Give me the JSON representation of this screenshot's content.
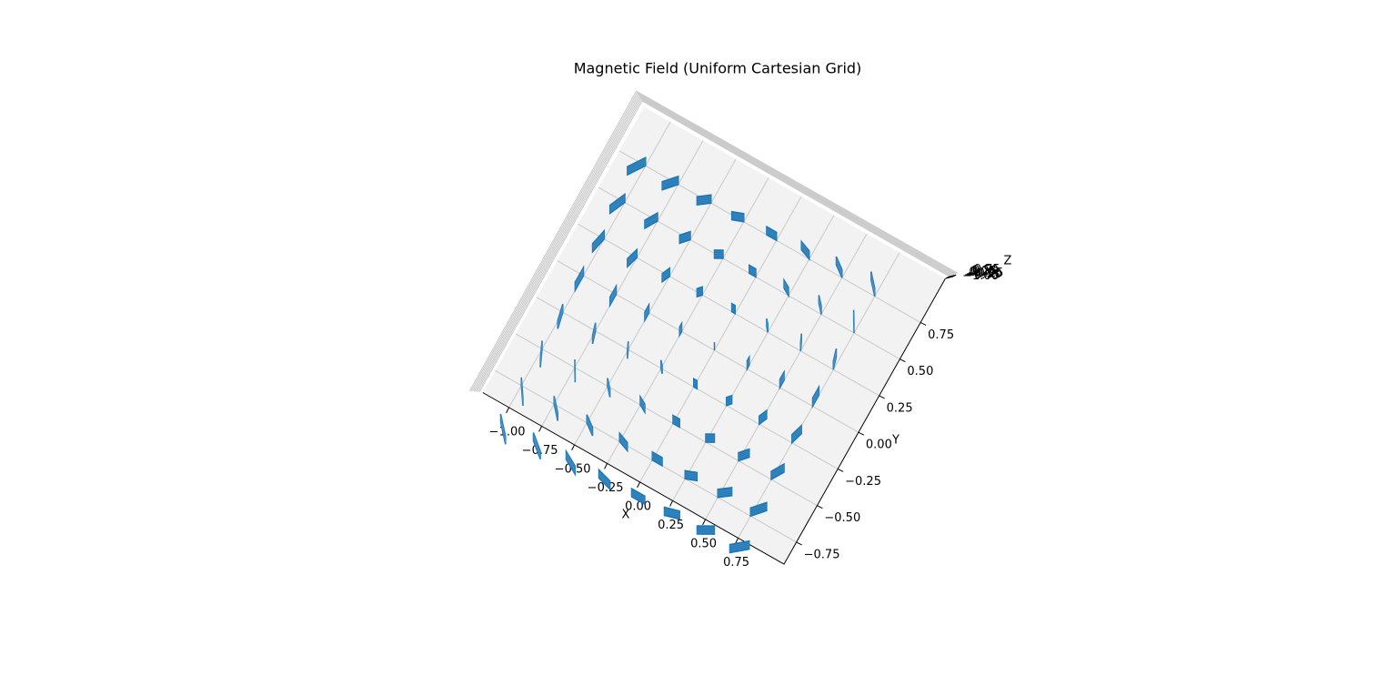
{
  "chart_data": {
    "type": "quiver3d",
    "title": "Magnetic Field (Uniform Cartesian Grid)",
    "xlabel": "X",
    "ylabel": "Y",
    "zlabel": "Z",
    "color": "#1f77b4",
    "grid": true,
    "xlim": [
      -1.2,
      1.1
    ],
    "ylim": [
      -0.9,
      1.05
    ],
    "zlim": [
      -1.1,
      0.85
    ],
    "xticks": [
      {
        "value": -1,
        "label": "−1.00"
      },
      {
        "value": -0.75,
        "label": "−0.75"
      },
      {
        "value": -0.5,
        "label": "−0.50"
      },
      {
        "value": -0.25,
        "label": "−0.25"
      },
      {
        "value": 0,
        "label": "0.00"
      },
      {
        "value": 0.25,
        "label": "0.25"
      },
      {
        "value": 0.5,
        "label": "0.50"
      },
      {
        "value": 0.75,
        "label": "0.75"
      }
    ],
    "yticks": [
      {
        "value": -0.75,
        "label": "−0.75"
      },
      {
        "value": -0.5,
        "label": "−0.50"
      },
      {
        "value": -0.25,
        "label": "−0.25"
      },
      {
        "value": 0,
        "label": "0.00"
      },
      {
        "value": 0.25,
        "label": "0.25"
      },
      {
        "value": 0.5,
        "label": "0.50"
      },
      {
        "value": 0.75,
        "label": "0.75"
      }
    ],
    "zticks": [
      {
        "value": -1,
        "label": "−1.00"
      },
      {
        "value": -0.75,
        "label": "−0.75"
      },
      {
        "value": -0.5,
        "label": "−0.50"
      },
      {
        "value": -0.25,
        "label": "−0.25"
      },
      {
        "value": 0,
        "label": "0.00"
      },
      {
        "value": 0.25,
        "label": "0.25"
      },
      {
        "value": 0.5,
        "label": "0.50"
      },
      {
        "value": 0.75,
        "label": "0.75"
      }
    ],
    "x": [
      -1,
      -0.75,
      -0.5,
      -0.25,
      0,
      0.25,
      0.5,
      0.75
    ],
    "y": [
      -1,
      -0.75,
      -0.5,
      -0.25,
      0,
      0.25,
      0.5,
      0.75
    ],
    "u": [
      [
        1,
        1,
        1,
        1,
        1,
        1,
        1,
        1
      ],
      [
        0.75,
        0.75,
        0.75,
        0.75,
        0.75,
        0.75,
        0.75,
        0.75
      ],
      [
        0.5,
        0.5,
        0.5,
        0.5,
        0.5,
        0.5,
        0.5,
        0.5
      ],
      [
        0.25,
        0.25,
        0.25,
        0.25,
        0.25,
        0.25,
        0.25,
        0.25
      ],
      [
        0,
        0,
        0,
        0,
        0,
        0,
        0,
        0
      ],
      [
        -0.25,
        -0.25,
        -0.25,
        -0.25,
        -0.25,
        -0.25,
        -0.25,
        -0.25
      ],
      [
        -0.5,
        -0.5,
        -0.5,
        -0.5,
        -0.5,
        -0.5,
        -0.5,
        -0.5
      ],
      [
        -0.75,
        -0.75,
        -0.75,
        -0.75,
        -0.75,
        -0.75,
        -0.75,
        -0.75
      ]
    ],
    "v": [
      [
        -1,
        -0.75,
        -0.5,
        -0.25,
        0,
        0.25,
        0.5,
        0.75
      ],
      [
        -1,
        -0.75,
        -0.5,
        -0.25,
        0,
        0.25,
        0.5,
        0.75
      ],
      [
        -1,
        -0.75,
        -0.5,
        -0.25,
        0,
        0.25,
        0.5,
        0.75
      ],
      [
        -1,
        -0.75,
        -0.5,
        -0.25,
        0,
        0.25,
        0.5,
        0.75
      ],
      [
        -1,
        -0.75,
        -0.5,
        -0.25,
        0,
        0.25,
        0.5,
        0.75
      ],
      [
        -1,
        -0.75,
        -0.5,
        -0.25,
        0,
        0.25,
        0.5,
        0.75
      ],
      [
        -1,
        -0.75,
        -0.5,
        -0.25,
        0,
        0.25,
        0.5,
        0.75
      ],
      [
        -1,
        -0.75,
        -0.5,
        -0.25,
        0,
        0.25,
        0.5,
        0.75
      ]
    ]
  }
}
